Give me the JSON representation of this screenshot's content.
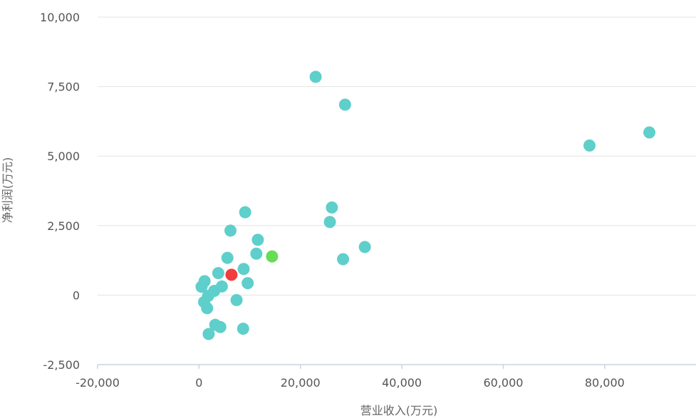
{
  "chart_data": {
    "type": "scatter",
    "xlabel": "营业收入(万元)",
    "ylabel": "净利润(万元)",
    "xlim": [
      -20000,
      98000
    ],
    "ylim": [
      -2500,
      10000
    ],
    "x_ticks": [
      -20000,
      0,
      20000,
      40000,
      60000,
      80000
    ],
    "x_tick_labels": [
      "-20,000",
      "0",
      "20,000",
      "40,000",
      "60,000",
      "80,000"
    ],
    "y_ticks": [
      -2500,
      0,
      2500,
      5000,
      7500,
      10000
    ],
    "y_tick_labels": [
      "-2,500",
      "0",
      "2,500",
      "5,000",
      "7,500",
      "10,000"
    ],
    "grid": "horizontal",
    "colors": {
      "default": "#5ecfcb",
      "red": "#f23d3d",
      "green": "#66dd55"
    },
    "points": [
      {
        "x": 23000,
        "y": 7850,
        "color": "default"
      },
      {
        "x": 28800,
        "y": 6850,
        "color": "default"
      },
      {
        "x": 77000,
        "y": 5380,
        "color": "default"
      },
      {
        "x": 88800,
        "y": 5850,
        "color": "default"
      },
      {
        "x": 26200,
        "y": 3150,
        "color": "default"
      },
      {
        "x": 25800,
        "y": 2630,
        "color": "default"
      },
      {
        "x": 32700,
        "y": 1730,
        "color": "default"
      },
      {
        "x": 28400,
        "y": 1290,
        "color": "default"
      },
      {
        "x": 9100,
        "y": 2980,
        "color": "default"
      },
      {
        "x": 6200,
        "y": 2320,
        "color": "default"
      },
      {
        "x": 11600,
        "y": 1990,
        "color": "default"
      },
      {
        "x": 11300,
        "y": 1490,
        "color": "default"
      },
      {
        "x": 5600,
        "y": 1340,
        "color": "default"
      },
      {
        "x": 14400,
        "y": 1390,
        "color": "green"
      },
      {
        "x": 6400,
        "y": 730,
        "color": "red"
      },
      {
        "x": 8800,
        "y": 940,
        "color": "default"
      },
      {
        "x": 3800,
        "y": 790,
        "color": "default"
      },
      {
        "x": 9600,
        "y": 430,
        "color": "default"
      },
      {
        "x": 4500,
        "y": 310,
        "color": "default"
      },
      {
        "x": 1100,
        "y": 500,
        "color": "default"
      },
      {
        "x": 500,
        "y": 300,
        "color": "default"
      },
      {
        "x": 3000,
        "y": 150,
        "color": "default"
      },
      {
        "x": 1800,
        "y": -30,
        "color": "default"
      },
      {
        "x": 1000,
        "y": -250,
        "color": "default"
      },
      {
        "x": 1600,
        "y": -470,
        "color": "default"
      },
      {
        "x": 7400,
        "y": -180,
        "color": "default"
      },
      {
        "x": 3200,
        "y": -1070,
        "color": "default"
      },
      {
        "x": 4200,
        "y": -1150,
        "color": "default"
      },
      {
        "x": 8700,
        "y": -1210,
        "color": "default"
      },
      {
        "x": 1900,
        "y": -1400,
        "color": "default"
      }
    ]
  }
}
